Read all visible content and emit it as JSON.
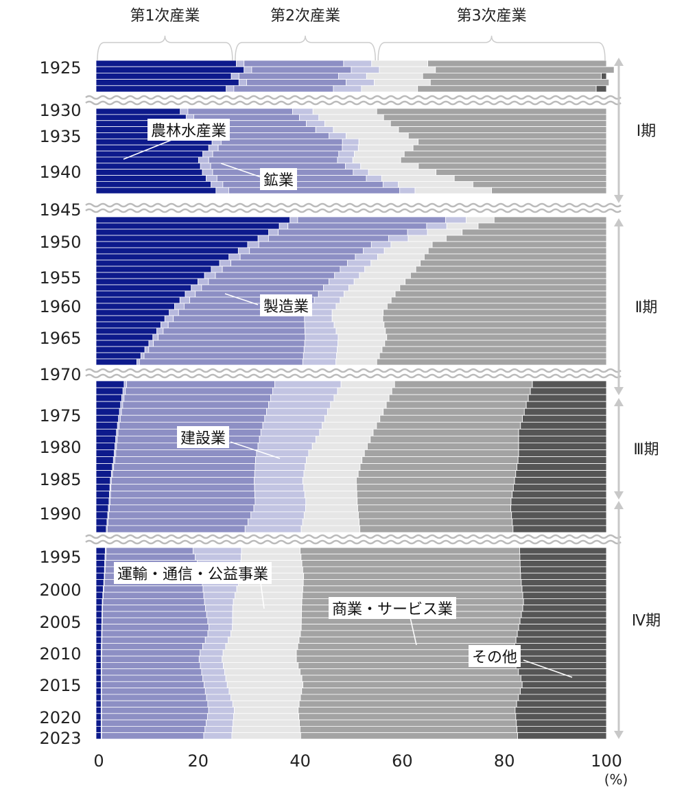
{
  "chart_data": {
    "type": "bar",
    "orientation": "horizontal",
    "stacked": "100%",
    "unit_label": "(%)",
    "xlim": [
      0,
      100
    ],
    "x_ticks": [
      "0",
      "20",
      "40",
      "60",
      "80",
      "100"
    ],
    "sector_groups": [
      {
        "label": "第1次産業",
        "range": [
          0,
          27
        ]
      },
      {
        "label": "第2次産業",
        "range": [
          27,
          55
        ]
      },
      {
        "label": "第3次産業",
        "range": [
          55,
          100
        ]
      }
    ],
    "periods": [
      {
        "label": "Ⅰ期",
        "years": [
          1930,
          1945
        ]
      },
      {
        "label": "Ⅱ期",
        "years": [
          1945,
          1970
        ]
      },
      {
        "label": "Ⅲ期",
        "years": [
          1970,
          1995
        ]
      },
      {
        "label": "Ⅳ期",
        "years": [
          1995,
          2023
        ]
      }
    ],
    "year_labels": [
      "1925",
      "1930",
      "1935",
      "1940",
      "1945",
      "1950",
      "1955",
      "1960",
      "1965",
      "1970",
      "1975",
      "1980",
      "1985",
      "1990",
      "1995",
      "2000",
      "2005",
      "2010",
      "2015",
      "2020",
      "2023"
    ],
    "series": [
      {
        "name": "農林水産業",
        "color": "#0d1a8c"
      },
      {
        "name": "鉱業",
        "color": "#b7b9dd"
      },
      {
        "name": "製造業",
        "color": "#8d8fc4"
      },
      {
        "name": "建設業",
        "color": "#c2c4e2"
      },
      {
        "name": "運輸・通信・公益事業",
        "color": "#e6e6e6"
      },
      {
        "name": "商業・サービス業",
        "color": "#a3a3a3"
      },
      {
        "name": "その他",
        "color": "#555555"
      }
    ],
    "segments": [
      {
        "start": 1925,
        "end": 1925,
        "data": [
          [
            27.5,
            1.5,
            19.5,
            5.5,
            11.0,
            35.0,
            0
          ]
        ]
      },
      {
        "start": 1930,
        "end": 1943,
        "data": [
          [
            16.5,
            1.5,
            20.5,
            4.0,
            12.5,
            45.0,
            0
          ],
          [
            19.5,
            1.5,
            21.0,
            3.5,
            13.0,
            41.5,
            0
          ],
          [
            23.0,
            1.8,
            24.0,
            3.2,
            11.5,
            36.5,
            0
          ],
          [
            20.0,
            2.0,
            25.0,
            3.0,
            9.0,
            41.0,
            0
          ],
          [
            21.0,
            2.0,
            28.0,
            3.0,
            14.0,
            32.0,
            0
          ],
          [
            23.5,
            2.5,
            33.5,
            3.0,
            15.0,
            22.5,
            0
          ]
        ]
      },
      {
        "start": 1946,
        "end": 1969,
        "data": [
          [
            38.0,
            1.5,
            29.0,
            4.0,
            5.5,
            22.0,
            0
          ],
          [
            30.0,
            2.2,
            22.0,
            3.8,
            8.0,
            34.0,
            0
          ],
          [
            23.0,
            2.2,
            23.0,
            4.8,
            10.0,
            37.0,
            0
          ],
          [
            18.0,
            2.0,
            24.0,
            5.0,
            10.0,
            41.0,
            0
          ],
          [
            14.0,
            1.8,
            25.0,
            5.2,
            10.0,
            44.0,
            0
          ],
          [
            11.0,
            1.0,
            29.0,
            6.5,
            9.5,
            43.0,
            0
          ],
          [
            8.0,
            0.5,
            32.0,
            6.5,
            8.0,
            45.0,
            0
          ]
        ]
      },
      {
        "start": 1971,
        "end": 1992,
        "data": [
          [
            5.5,
            0.5,
            29.0,
            13.0,
            10.5,
            27.0,
            14.5
          ],
          [
            4.7,
            0.4,
            28.5,
            12.0,
            11.0,
            27.5,
            15.9
          ],
          [
            4.0,
            0.3,
            28.0,
            11.5,
            10.5,
            28.5,
            17.2
          ],
          [
            3.5,
            0.3,
            27.5,
            10.0,
            11.0,
            30.5,
            17.2
          ],
          [
            2.8,
            0.2,
            28.0,
            9.5,
            10.5,
            31.0,
            18.0
          ],
          [
            2.5,
            0.2,
            28.5,
            10.0,
            10.0,
            30.0,
            18.8
          ],
          [
            2.0,
            0.2,
            27.0,
            11.0,
            11.5,
            30.0,
            18.3
          ]
        ]
      },
      {
        "start": 1994,
        "end": 2023,
        "data": [
          [
            1.8,
            0.2,
            17.0,
            9.5,
            11.5,
            43.0,
            17.0
          ],
          [
            1.6,
            0.1,
            19.0,
            7.5,
            12.5,
            42.5,
            16.8
          ],
          [
            1.2,
            0.1,
            20.0,
            5.5,
            13.5,
            43.5,
            16.2
          ],
          [
            1.1,
            0.1,
            21.0,
            4.5,
            13.5,
            42.5,
            17.3
          ],
          [
            1.0,
            0.1,
            19.0,
            4.5,
            14.5,
            42.5,
            18.4
          ],
          [
            1.0,
            0.1,
            20.0,
            4.5,
            15.0,
            43.0,
            16.4
          ],
          [
            1.0,
            0.1,
            21.0,
            5.0,
            12.5,
            42.5,
            17.9
          ],
          [
            1.0,
            0.1,
            20.0,
            5.5,
            13.5,
            42.5,
            17.4
          ]
        ]
      }
    ],
    "annotations": [
      "農林水産業",
      "鉱業",
      "製造業",
      "建設業",
      "運輸・通信・公益事業",
      "商業・サービス業",
      "その他"
    ]
  }
}
